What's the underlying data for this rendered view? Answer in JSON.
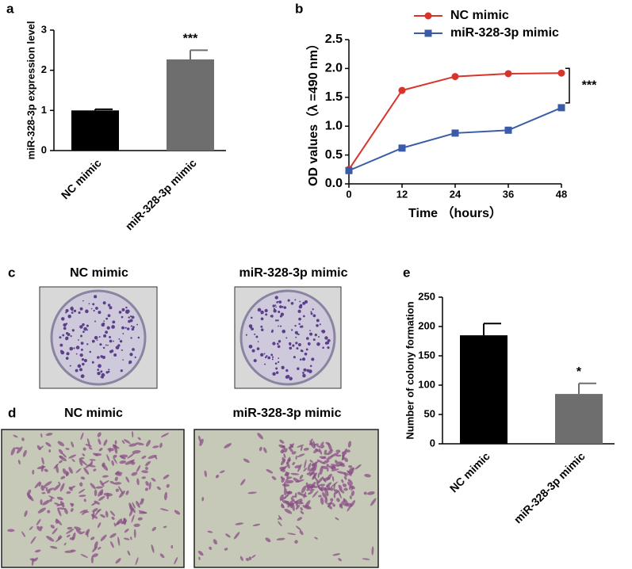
{
  "chart_data": [
    {
      "type": "bar",
      "panel": "a",
      "ylabel": "miR-328-3p expression level",
      "categories": [
        "NC mimic",
        "miR-328-3p mimic"
      ],
      "values": [
        1.0,
        2.27
      ],
      "errors": [
        0.03,
        0.23
      ],
      "colors": [
        "#000000",
        "#6e6e6e"
      ],
      "ylim": [
        0,
        3
      ],
      "yticks": [
        0,
        1,
        2,
        3
      ],
      "annotation": "***"
    },
    {
      "type": "line",
      "panel": "b",
      "xlabel": "Time （hours）",
      "ylabel": "OD values（λ =490 nm）",
      "x": [
        0,
        12,
        24,
        36,
        48
      ],
      "xlim": [
        0,
        48
      ],
      "xticks": [
        0,
        12,
        24,
        36,
        48
      ],
      "ylim": [
        0,
        2.5
      ],
      "yticks": [
        {
          "value": 0,
          "label": "0.0"
        },
        {
          "value": 0.5,
          "label": "0.5"
        },
        {
          "value": 1,
          "label": "1.0"
        },
        {
          "value": 1.5,
          "label": "1.5"
        },
        {
          "value": 2,
          "label": "2.0"
        },
        {
          "value": 2.5,
          "label": "2.5"
        }
      ],
      "series": [
        {
          "name": "NC mimic",
          "color": "#d9342b",
          "values": [
            0.25,
            1.62,
            1.86,
            1.91,
            1.92
          ]
        },
        {
          "name": "miR-328-3p mimic",
          "color": "#3a5ba8",
          "values": [
            0.23,
            0.62,
            0.88,
            0.93,
            1.32
          ]
        }
      ],
      "annotation": "***"
    },
    {
      "type": "bar",
      "panel": "e",
      "ylabel": "Number of colony formation",
      "categories": [
        "NC mimic",
        "miR-328-3p mimic"
      ],
      "values": [
        185,
        85
      ],
      "errors": [
        20,
        18
      ],
      "colors": [
        "#000000",
        "#6e6e6e"
      ],
      "ylim": [
        0,
        250
      ],
      "yticks": [
        0,
        50,
        100,
        150,
        200,
        250
      ],
      "annotation": "*"
    }
  ],
  "images": [
    {
      "panel": "c",
      "titles": [
        "NC mimic",
        "miR-328-3p mimic"
      ]
    },
    {
      "panel": "d",
      "titles": [
        "NC mimic",
        "miR-328-3p mimic"
      ]
    }
  ]
}
